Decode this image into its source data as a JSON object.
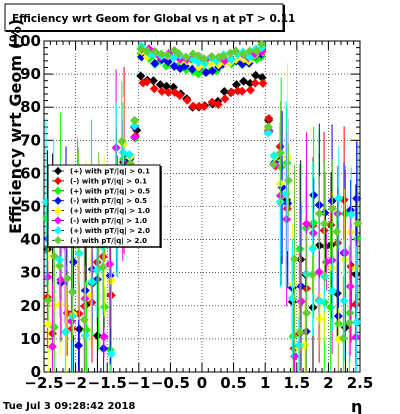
{
  "chart_data": {
    "type": "scatter",
    "title": "Efficiency wrt Geom for Global vs   η at pT > 0.11",
    "xlabel": "η",
    "ylabel": "Efficiency wrt Geom (%)",
    "xlim": [
      -2.5,
      2.5
    ],
    "ylim": [
      0,
      100
    ],
    "x_ticks": [
      "−2.5",
      "−2",
      "−1.5",
      "−1",
      "−0.5",
      "0",
      "0.5",
      "1",
      "1.5",
      "2",
      "2.5"
    ],
    "y_ticks": [
      "0",
      "10",
      "20",
      "30",
      "40",
      "50",
      "60",
      "70",
      "80",
      "90",
      "100"
    ],
    "grid": true,
    "legend_position": "middle-left",
    "timestamp": "Tue Jul  3 09:28:42 2018",
    "series": [
      {
        "name": "(+) with pT/|q| > 0.1",
        "color": "#000000"
      },
      {
        "name": "(-) with pT/|q| > 0.1",
        "color": "#ff0000"
      },
      {
        "name": "(+) with pT/|q| > 0.5",
        "color": "#00ff00"
      },
      {
        "name": "(-) with pT/|q| > 0.5",
        "color": "#0000ff"
      },
      {
        "name": "(+) with pT/|q| > 1.0",
        "color": "#ffff00"
      },
      {
        "name": "(-) with pT/|q| > 1.0",
        "color": "#ff00ff"
      },
      {
        "name": "(+) with pT/|q| > 2.0",
        "color": "#00ffff"
      },
      {
        "name": "(-) with pT/|q| > 2.0",
        "color": "#66cc33"
      }
    ]
  }
}
